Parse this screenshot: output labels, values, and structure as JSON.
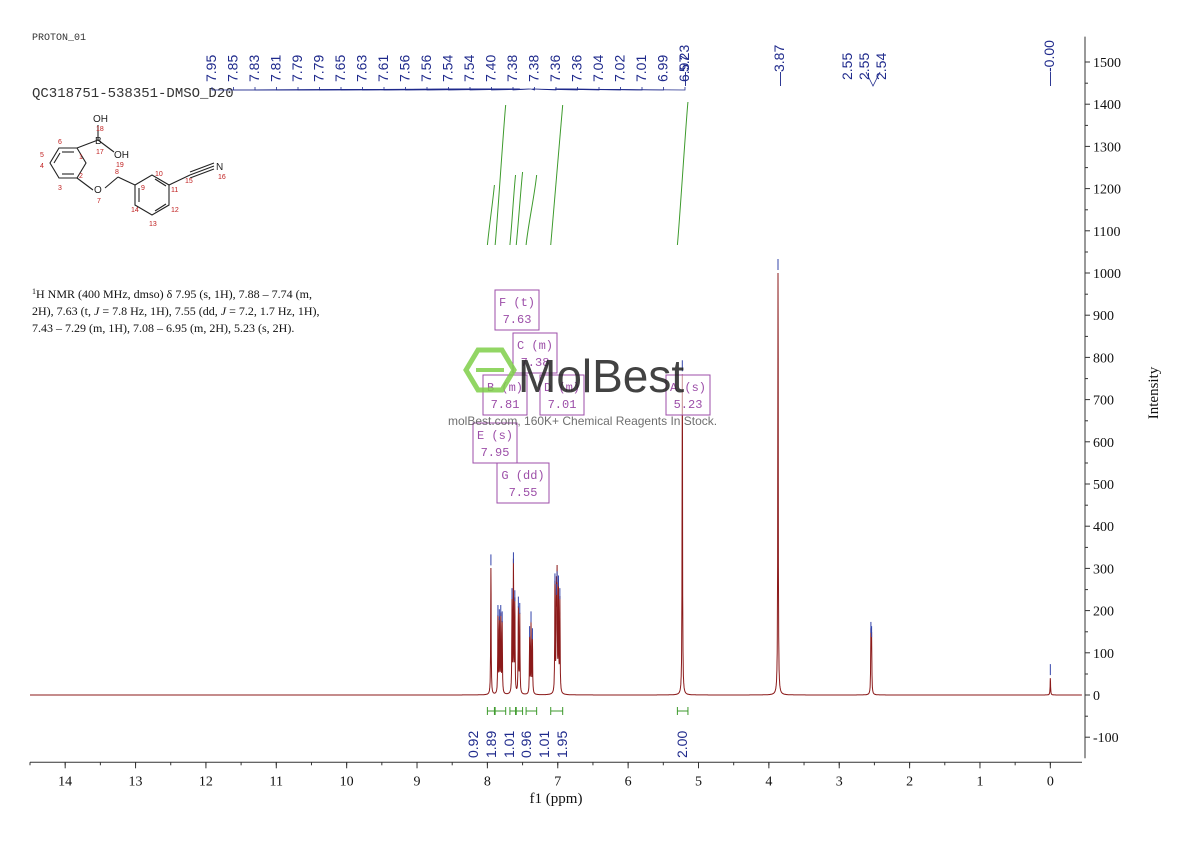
{
  "header": {
    "proton_label": "PROTON_01",
    "sample_id": "QC318751-538351-DMSO_D20"
  },
  "structure": {
    "atoms": [
      "OH",
      "18",
      "B",
      "17",
      "OH",
      "19",
      "O",
      "7",
      "8",
      "9",
      "10",
      "11",
      "12",
      "13",
      "14",
      "15",
      "N",
      "16",
      "1",
      "2",
      "3",
      "4",
      "5",
      "6"
    ]
  },
  "nmr_text": {
    "line1_sup": "1",
    "line1": "H NMR (400 MHz, dmso) δ 7.95 (s, 1H), 7.88 – 7.74 (m,",
    "line2_pre": "2H), 7.63 (t, ",
    "line2_j": "J",
    "line2_post": " = 7.8 Hz, 1H), 7.55 (dd, ",
    "line2_j2": "J",
    "line2_post2": " = 7.2, 1.7 Hz, 1H),",
    "line3": "7.43 – 7.29 (m, 1H), 7.08 – 6.95 (m, 2H), 5.23 (s, 2H)."
  },
  "watermark": {
    "brand": "MolBest",
    "tagline": "molBest.com, 160K+ Chemical Reagents In Stock."
  },
  "chart_data": {
    "type": "line",
    "xlabel": "f1 (ppm)",
    "ylabel": "Intensity",
    "xlim": [
      14.5,
      -0.45
    ],
    "ylim": [
      -150,
      1560
    ],
    "x_ticks": [
      14,
      13,
      12,
      11,
      10,
      9,
      8,
      7,
      6,
      5,
      4,
      3,
      2,
      1,
      0
    ],
    "y_ticks": [
      -100,
      0,
      100,
      200,
      300,
      400,
      500,
      600,
      700,
      800,
      900,
      1000,
      1100,
      1200,
      1300,
      1400,
      1500
    ],
    "peaks": [
      {
        "ppm": 7.95,
        "height": 300
      },
      {
        "ppm": 7.85,
        "height": 180
      },
      {
        "ppm": 7.83,
        "height": 170
      },
      {
        "ppm": 7.81,
        "height": 180
      },
      {
        "ppm": 7.79,
        "height": 165
      },
      {
        "ppm": 7.65,
        "height": 220
      },
      {
        "ppm": 7.63,
        "height": 305
      },
      {
        "ppm": 7.61,
        "height": 215
      },
      {
        "ppm": 7.56,
        "height": 200
      },
      {
        "ppm": 7.54,
        "height": 185
      },
      {
        "ppm": 7.4,
        "height": 130
      },
      {
        "ppm": 7.38,
        "height": 165
      },
      {
        "ppm": 7.36,
        "height": 125
      },
      {
        "ppm": 7.04,
        "height": 255
      },
      {
        "ppm": 7.02,
        "height": 230
      },
      {
        "ppm": 7.01,
        "height": 260
      },
      {
        "ppm": 6.99,
        "height": 250
      },
      {
        "ppm": 6.97,
        "height": 220
      },
      {
        "ppm": 5.23,
        "height": 760
      },
      {
        "ppm": 3.87,
        "height": 1000
      },
      {
        "ppm": 2.55,
        "height": 140
      },
      {
        "ppm": 2.54,
        "height": 130
      },
      {
        "ppm": 0.0,
        "height": 40
      }
    ],
    "peak_labels": [
      "7.95",
      "7.85",
      "7.83",
      "7.81",
      "7.79",
      "7.79",
      "7.65",
      "7.63",
      "7.61",
      "7.56",
      "7.56",
      "7.54",
      "7.54",
      "7.40",
      "7.38",
      "7.38",
      "7.36",
      "7.36",
      "7.04",
      "7.02",
      "7.01",
      "6.99",
      "6.97"
    ],
    "single_peak_labels": [
      "5.23",
      "3.87",
      "-0.00"
    ],
    "dmso_labels": [
      "2.55",
      "2.55",
      "2.54"
    ],
    "integrals": [
      {
        "label": "0.92",
        "from": 8.0,
        "to": 7.9
      },
      {
        "label": "1.89",
        "from": 7.89,
        "to": 7.74
      },
      {
        "label": "1.01",
        "from": 7.68,
        "to": 7.6
      },
      {
        "label": "0.96",
        "from": 7.59,
        "to": 7.5
      },
      {
        "label": "1.01",
        "from": 7.45,
        "to": 7.3
      },
      {
        "label": "1.95",
        "from": 7.1,
        "to": 6.93
      },
      {
        "label": "2.00",
        "from": 5.3,
        "to": 5.15
      }
    ],
    "multiplets": [
      {
        "letter": "F",
        "type": "(t)",
        "shift": "7.63"
      },
      {
        "letter": "C",
        "type": "(m)",
        "shift": "7.38"
      },
      {
        "letter": "B",
        "type": "(m)",
        "shift": "7.81"
      },
      {
        "letter": "D",
        "type": "(m)",
        "shift": "7.01"
      },
      {
        "letter": "A",
        "type": "(s)",
        "shift": "5.23"
      },
      {
        "letter": "E",
        "type": "(s)",
        "shift": "7.95"
      },
      {
        "letter": "G",
        "type": "(dd)",
        "shift": "7.55"
      }
    ],
    "colors": {
      "spectrum": "#8b1a1a",
      "peak_labels": "#1f2a8c",
      "integral": "#3d9a2c",
      "multiplet_box": "#9c4ea8",
      "watermark": "#7fcf4a"
    }
  }
}
